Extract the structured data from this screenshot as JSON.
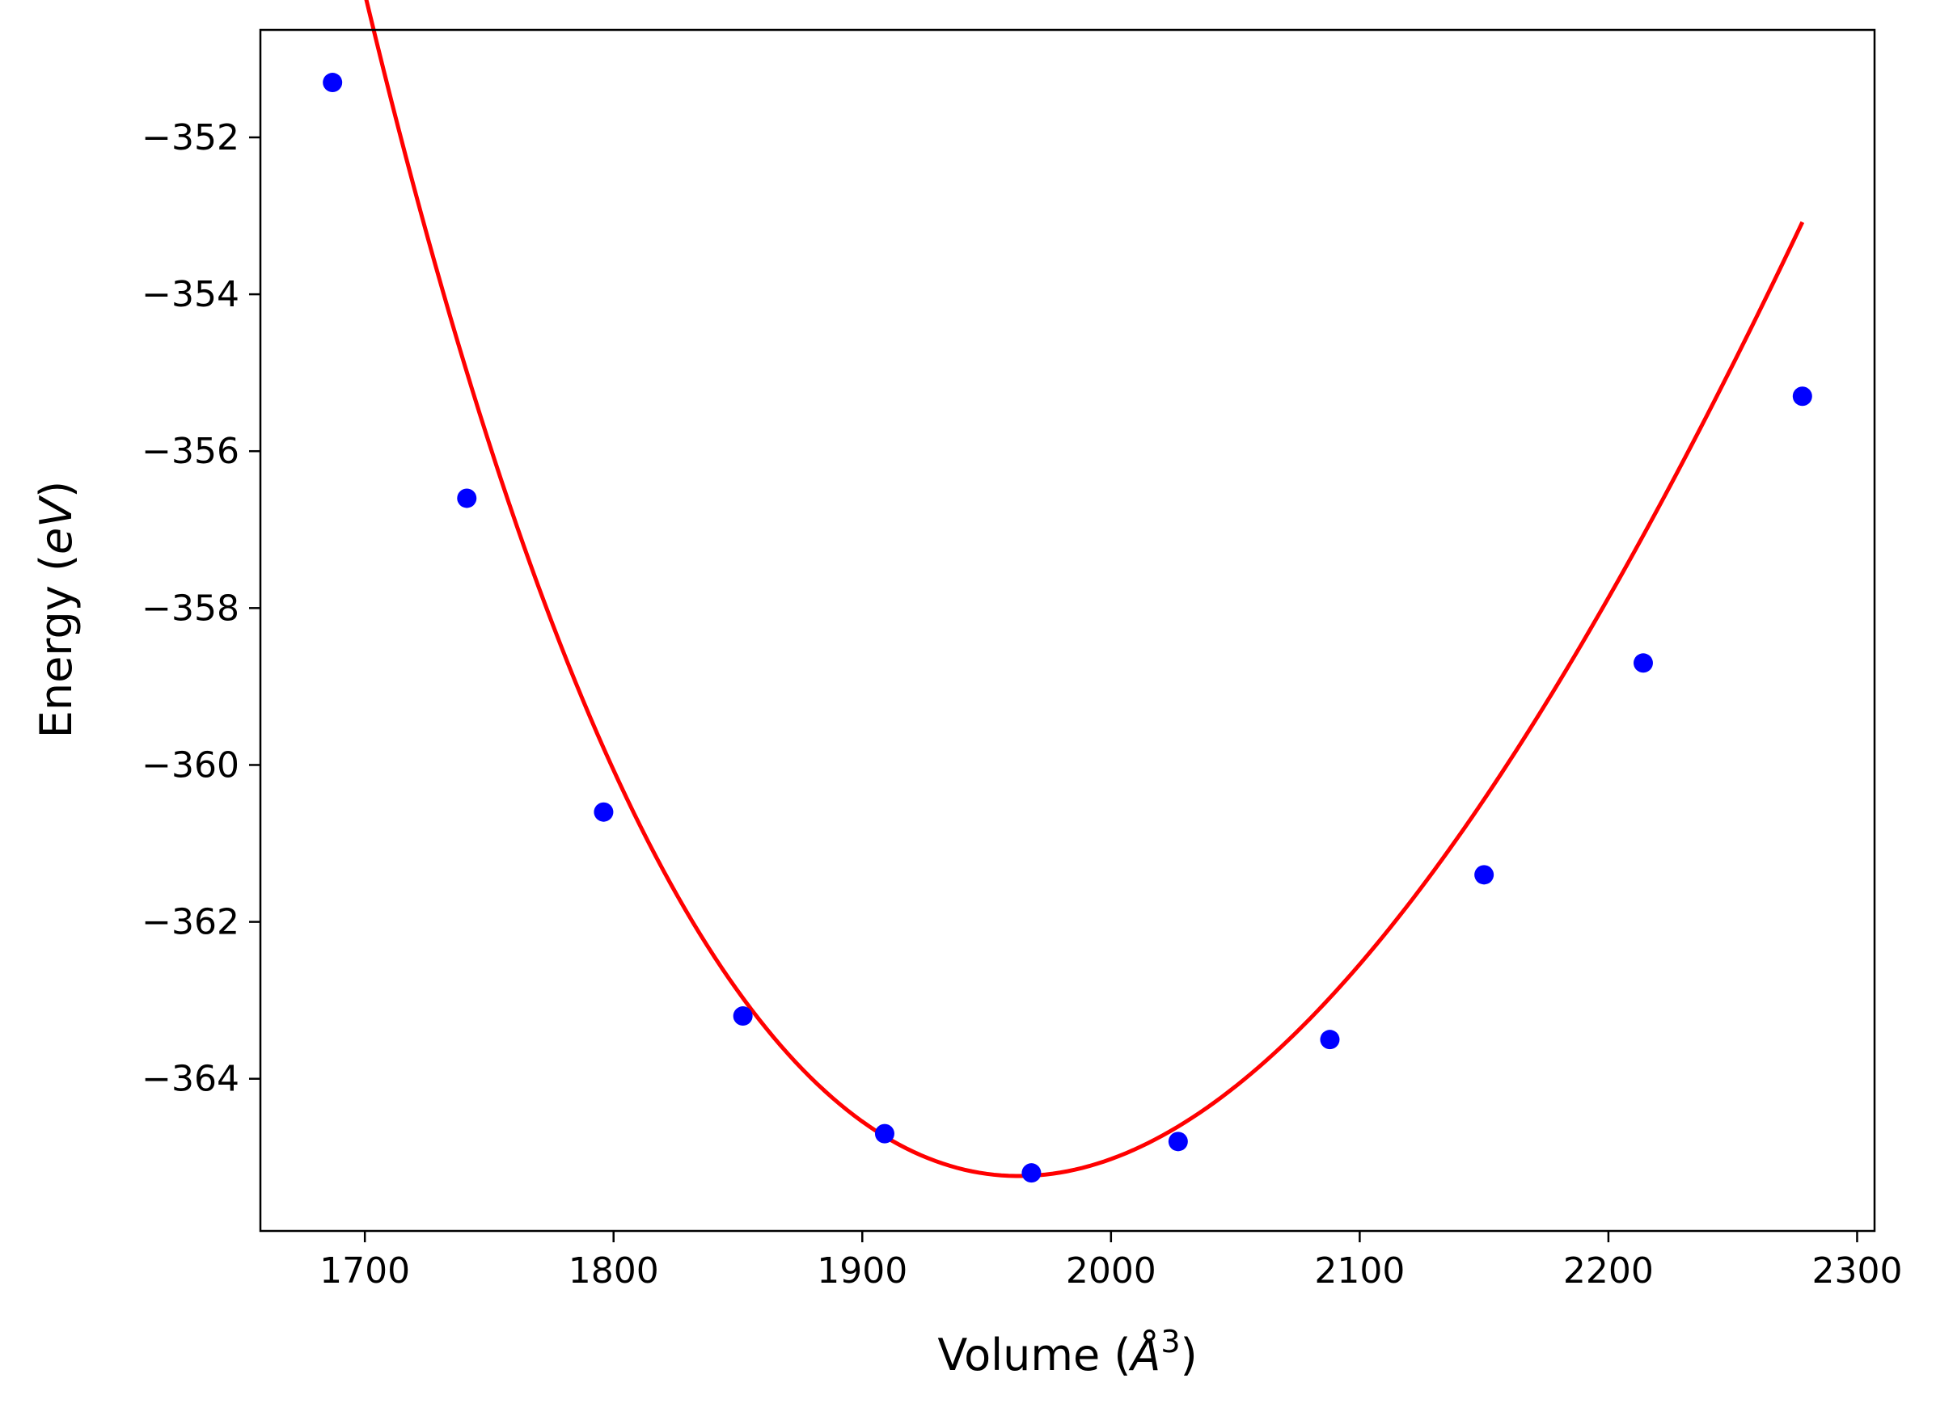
{
  "chart_data": {
    "type": "scatter",
    "title": "",
    "xlabel": {
      "main": "Volume (",
      "symbol": "Å",
      "exp": "3",
      "close": ")"
    },
    "ylabel": {
      "main": "Energy (",
      "unit": "eV",
      "close": ")"
    },
    "xlim": [
      1658,
      2307
    ],
    "ylim": [
      -365.94,
      -350.63
    ],
    "xticks": [
      1700,
      1800,
      1900,
      2000,
      2100,
      2200,
      2300
    ],
    "yticks": [
      -352,
      -354,
      -356,
      -358,
      -360,
      -362,
      -364
    ],
    "xtick_labels": [
      "1700",
      "1800",
      "1900",
      "2000",
      "2100",
      "2200",
      "2300"
    ],
    "ytick_labels": [
      "−352",
      "−354",
      "−356",
      "−358",
      "−360",
      "−362",
      "−364"
    ],
    "grid": false,
    "series": [
      {
        "type": "line",
        "color": "#ff0000",
        "curve": {
          "E0": -365.24,
          "V0": 1963,
          "B0": 0.6446,
          "B0_prime": 4.9
        }
      },
      {
        "type": "scatter",
        "color": "#0000ff",
        "x": [
          1687,
          1741,
          1796,
          1852,
          1909,
          1968,
          2027,
          2088,
          2150,
          2214,
          2278
        ],
        "y": [
          -351.3,
          -356.6,
          -360.6,
          -363.2,
          -364.7,
          -365.2,
          -364.8,
          -363.5,
          -361.4,
          -358.7,
          -355.3
        ]
      }
    ]
  }
}
